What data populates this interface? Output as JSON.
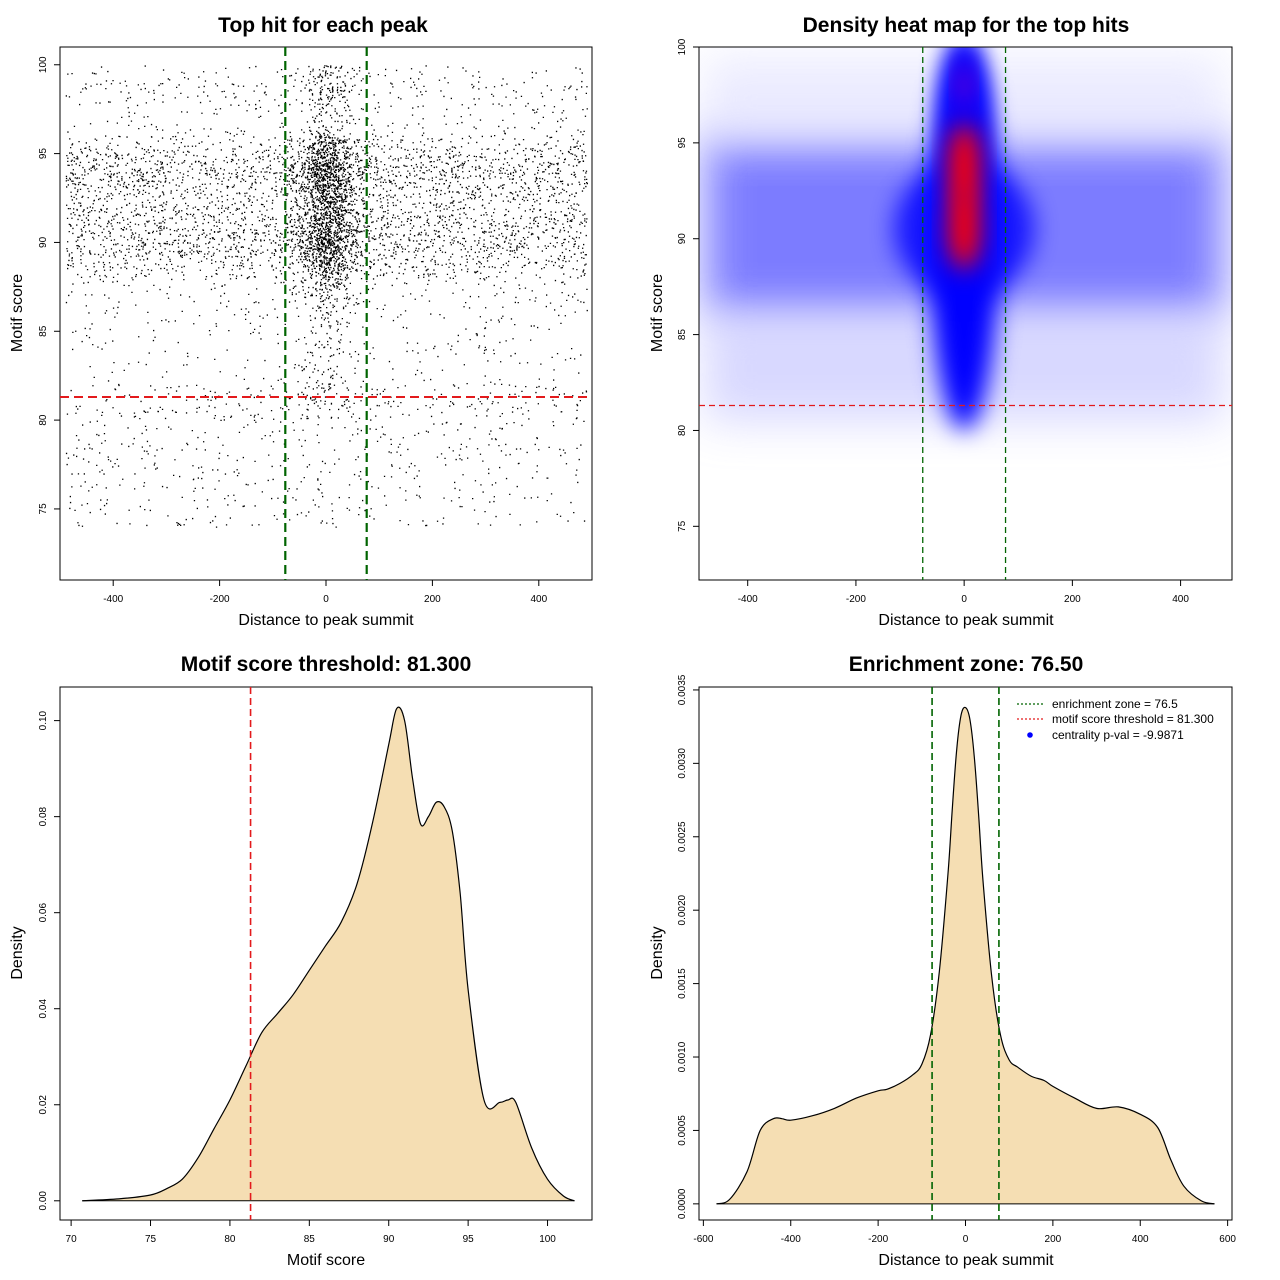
{
  "chart_data": [
    {
      "type": "scatter",
      "title": "Top hit for each peak",
      "xlabel": "Distance to peak summit",
      "ylabel": "Motif score",
      "xlim": [
        -500,
        500
      ],
      "ylim": [
        71,
        101
      ],
      "xticks": [
        -400,
        -200,
        0,
        200,
        400
      ],
      "yticks": [
        75,
        80,
        85,
        90,
        95,
        100
      ],
      "hline": {
        "y": 81.3,
        "color": "#e31a1c"
      },
      "vlines": {
        "x": [
          -76.5,
          76.5
        ],
        "color": "#006400"
      },
      "point_color": "#000000",
      "point_distribution": {
        "x_range": [
          -490,
          490
        ],
        "y_range": [
          72,
          100
        ],
        "dense_center_x": 0,
        "approx_points": 7000
      }
    },
    {
      "type": "heatmap",
      "title": "Density heat map for the top hits",
      "xlabel": "Distance to peak summit",
      "ylabel": "Motif score",
      "xlim": [
        -490,
        495
      ],
      "ylim": [
        72.2,
        100
      ],
      "xticks": [
        -400,
        -200,
        0,
        200,
        400
      ],
      "yticks": [
        75,
        80,
        85,
        90,
        95,
        100
      ],
      "hline": {
        "y": 81.3,
        "color": "#e31a1c"
      },
      "vlines": {
        "x": [
          -76.5,
          76.5
        ],
        "color": "#006400"
      },
      "colors": {
        "low": "#ffffff",
        "mid": "#0000ff",
        "high": "#ff0000"
      },
      "hotspots": [
        {
          "x": 0,
          "y": 90.6,
          "level": "high"
        },
        {
          "x": 0,
          "y": 93.8,
          "level": "high"
        },
        {
          "x": 0,
          "y": 98,
          "level": "mid"
        }
      ]
    },
    {
      "type": "area",
      "title": "Motif score threshold: 81.300",
      "xlabel": "Motif score",
      "ylabel": "Density",
      "xlim": [
        69.3,
        102.8
      ],
      "ylim": [
        -0.004,
        0.107
      ],
      "xticks": [
        70,
        75,
        80,
        85,
        90,
        95,
        100
      ],
      "yticks": [
        "0.00",
        "0.02",
        "0.04",
        "0.06",
        "0.08",
        "0.10"
      ],
      "fill": "#f5deb3",
      "vline": {
        "x": 81.3,
        "color": "#e31a1c"
      },
      "x": [
        70.7,
        73,
        75,
        76,
        77,
        78,
        79,
        80,
        81,
        82,
        83,
        84,
        85,
        86,
        87,
        88,
        89,
        90,
        90.5,
        91,
        91.5,
        92,
        92.5,
        93,
        93.5,
        94,
        94.5,
        95,
        96,
        97,
        97.5,
        98,
        99,
        100,
        101,
        101.7
      ],
      "y": [
        0,
        0.0004,
        0.0012,
        0.0025,
        0.0045,
        0.009,
        0.015,
        0.021,
        0.028,
        0.035,
        0.039,
        0.043,
        0.048,
        0.053,
        0.058,
        0.066,
        0.079,
        0.095,
        0.1025,
        0.1,
        0.088,
        0.0785,
        0.08,
        0.083,
        0.082,
        0.077,
        0.064,
        0.044,
        0.021,
        0.0205,
        0.021,
        0.0205,
        0.011,
        0.0045,
        0.001,
        0
      ]
    },
    {
      "type": "area",
      "title": "Enrichment zone: 76.50",
      "xlabel": "Distance to peak summit",
      "ylabel": "Density",
      "xlim": [
        -610,
        610
      ],
      "ylim": [
        -0.00011,
        0.00352
      ],
      "xticks": [
        -600,
        -400,
        -200,
        0,
        200,
        400,
        600
      ],
      "yticks": [
        "0.0000",
        "0.0005",
        "0.0010",
        "0.0015",
        "0.0020",
        "0.0025",
        "0.0030",
        "0.0035"
      ],
      "fill": "#f5deb3",
      "vlines": {
        "x": [
          -76.5,
          76.5
        ],
        "color": "#006400"
      },
      "x": [
        -570,
        -540,
        -500,
        -470,
        -440,
        -420,
        -400,
        -350,
        -300,
        -250,
        -200,
        -180,
        -150,
        -120,
        -100,
        -80,
        -60,
        -40,
        -30,
        -20,
        -10,
        0,
        10,
        20,
        30,
        40,
        60,
        80,
        100,
        120,
        150,
        180,
        200,
        250,
        300,
        350,
        400,
        440,
        470,
        500,
        540,
        570
      ],
      "y": [
        0,
        3e-05,
        0.00022,
        0.0005,
        0.00058,
        0.00058,
        0.00057,
        0.0006,
        0.00065,
        0.00072,
        0.00077,
        0.00078,
        0.00082,
        0.00088,
        0.00095,
        0.00115,
        0.00158,
        0.00225,
        0.0027,
        0.0031,
        0.00333,
        0.00338,
        0.0033,
        0.00305,
        0.00265,
        0.0022,
        0.00155,
        0.00115,
        0.00098,
        0.00093,
        0.00087,
        0.00084,
        0.0008,
        0.00072,
        0.00065,
        0.00066,
        0.00061,
        0.00052,
        0.0003,
        0.00012,
        2e-05,
        0
      ]
    }
  ],
  "legend_panel4": {
    "items": [
      {
        "label": "enrichment zone = 76.5",
        "color": "#006400",
        "symbol": "dotted-line"
      },
      {
        "label": "motif score threshold = 81.300",
        "color": "#e31a1c",
        "symbol": "dotted-line"
      },
      {
        "label": "centrality p-val = -9.9871",
        "color": "#0000ff",
        "symbol": "dot"
      }
    ]
  }
}
